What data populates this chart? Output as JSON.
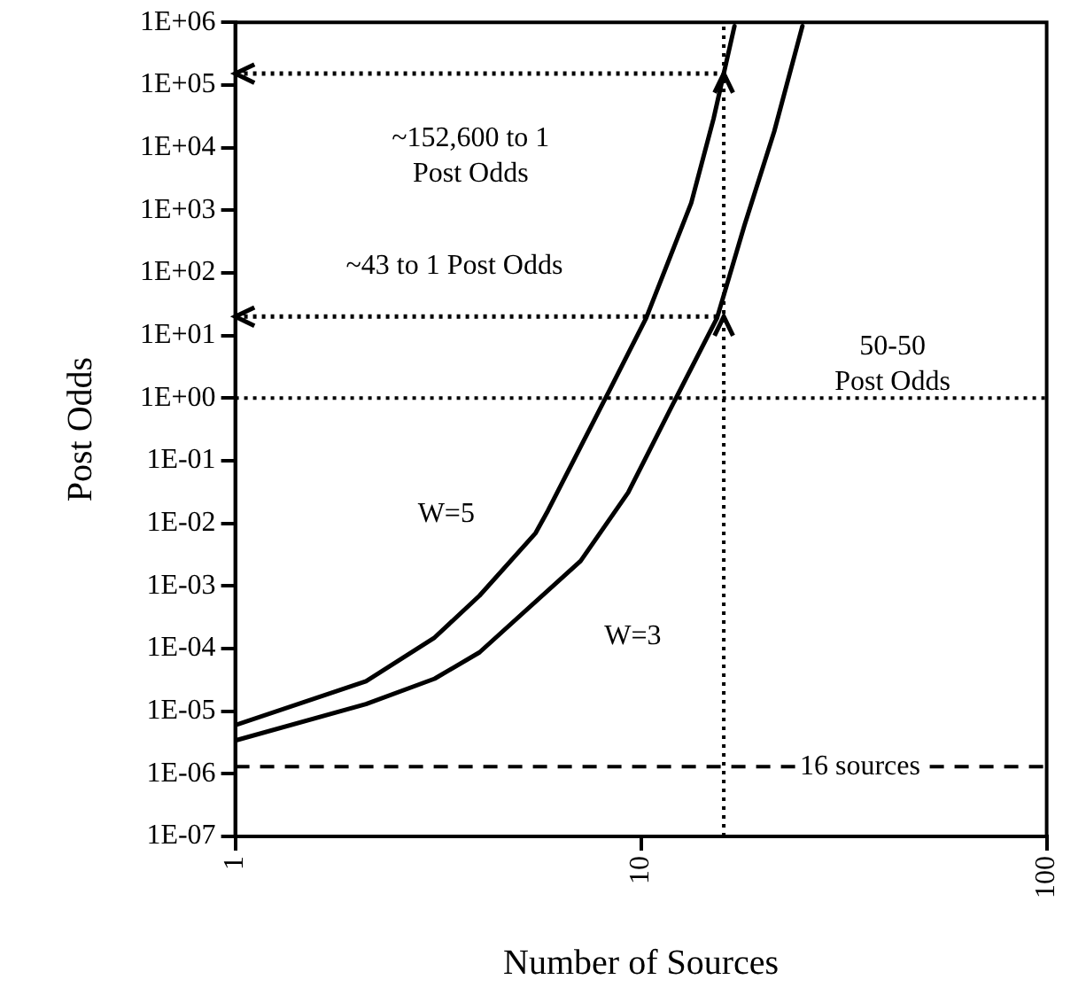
{
  "chart_data": {
    "type": "line",
    "xlabel": "Number of Sources",
    "ylabel": "Post Odds",
    "log": "xy",
    "grid": false,
    "legend": false,
    "marker": "none",
    "xlim": [
      1,
      100
    ],
    "xticks": [
      1,
      10,
      100
    ],
    "ylim": [
      1e-07,
      1000000.0
    ],
    "yticks": [
      {
        "value": 1e-07,
        "label": "1E-07"
      },
      {
        "value": 1e-06,
        "label": "1E-06"
      },
      {
        "value": 1e-05,
        "label": "1E-05"
      },
      {
        "value": 0.0001,
        "label": "1E-04"
      },
      {
        "value": 0.001,
        "label": "1E-03"
      },
      {
        "value": 0.01,
        "label": "1E-02"
      },
      {
        "value": 0.1,
        "label": "1E-01"
      },
      {
        "value": 1,
        "label": "1E+00"
      },
      {
        "value": 10,
        "label": "1E+01"
      },
      {
        "value": 100,
        "label": "1E+02"
      },
      {
        "value": 1000,
        "label": "1E+03"
      },
      {
        "value": 10000,
        "label": "1E+04"
      },
      {
        "value": 100000,
        "label": "1E+05"
      },
      {
        "value": 1000000,
        "label": "1E+06"
      }
    ],
    "series": [
      {
        "color": "#000000",
        "line_style": "solid",
        "x": [
          1,
          2.1,
          3.1,
          4,
          5.5,
          5.9,
          8.4,
          10.3,
          13.3,
          15.1,
          17
        ],
        "values": [
          6e-06,
          3e-05,
          0.00015,
          0.0007,
          0.007,
          0.016,
          1.4,
          19,
          1300,
          29000,
          870000
        ]
      },
      {
        "color": "#000000",
        "line_style": "solid",
        "x": [
          1,
          2.1,
          3.1,
          4,
          7.1,
          9.3,
          12.2,
          15.4,
          18,
          21.3,
          25
        ],
        "values": [
          3.4e-06,
          1.3e-05,
          3.3e-05,
          8.7e-05,
          0.0025,
          0.031,
          1,
          19,
          580,
          18000,
          870000
        ]
      }
    ],
    "ref_lines": [
      {
        "axis": "y",
        "value": 1,
        "color": "#000000",
        "line_style": "dotted"
      },
      {
        "axis": "x",
        "value": 16,
        "color": "#000000",
        "line_style": "dotted"
      },
      {
        "axis": "y",
        "value": 1.3e-06,
        "color": "#000000",
        "line_style": "dashed"
      }
    ],
    "annotations": [
      "~152,600 to 1\nPost Odds",
      "~43 to 1 Post Odds",
      "50-50\nPost Odds",
      "W=5",
      "W=3",
      "16 sources"
    ]
  }
}
